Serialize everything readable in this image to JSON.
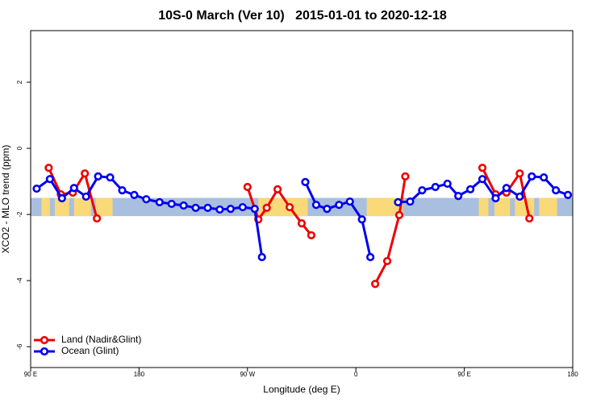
{
  "chart_data": {
    "type": "line",
    "title": "10S-0 March (Ver 10)   2015-01-01 to 2020-12-18",
    "xlabel": "Longitude (deg E)",
    "ylabel": "XCO2 - MLO trend (ppm)",
    "xlim": [
      90,
      540
    ],
    "ylim": [
      -6.63,
      3.56
    ],
    "xticks": [
      {
        "value": 90,
        "label": "90 E"
      },
      180,
      {
        "value": 270,
        "label": "90 W"
      },
      {
        "value": 360,
        "label": "0"
      },
      {
        "value": 450,
        "label": "90 E"
      },
      {
        "value": 540,
        "label": "180"
      }
    ],
    "yticks": [
      2,
      0,
      -2,
      -4,
      -6
    ],
    "legend": "bottomleft",
    "map_strip": {
      "ylim": [
        -2.05,
        -1.5
      ],
      "color": "#a9bfdf",
      "land_color": "#f9d978",
      "land": [
        [
          99,
          106
        ],
        [
          110,
          122
        ],
        [
          126,
          140
        ],
        [
          144,
          158
        ],
        [
          279,
          320
        ],
        [
          369,
          399
        ],
        [
          462,
          470
        ],
        [
          475,
          488
        ],
        [
          492,
          508
        ],
        [
          512,
          527
        ]
      ]
    },
    "series": [
      {
        "name": "Land (Nadir&Glint)",
        "color": "#ee0000",
        "x": [
          105,
          115,
          125,
          135,
          145,
          null,
          270,
          279,
          286,
          295,
          305,
          315,
          323,
          null,
          376,
          386,
          396,
          401,
          null,
          465,
          476,
          485,
          496,
          504
        ],
        "values": [
          -0.59,
          -1.39,
          -1.34,
          -0.76,
          -2.12,
          null,
          -1.17,
          -2.15,
          -1.8,
          -1.24,
          -1.78,
          -2.27,
          -2.63,
          null,
          -4.1,
          -3.41,
          -2.02,
          -0.85,
          null,
          -0.59,
          -1.39,
          -1.34,
          -0.76,
          -2.12
        ]
      },
      {
        "name": "Ocean (Glint)",
        "color": "#0000ee",
        "x": [
          95,
          106,
          116,
          126,
          136,
          146,
          156,
          166,
          176,
          186,
          197,
          207,
          217,
          227,
          237,
          247,
          256,
          266,
          276,
          282,
          null,
          318,
          327,
          336,
          346,
          355,
          365,
          372,
          null,
          395,
          405,
          415,
          426,
          436,
          445,
          455,
          465,
          476,
          485,
          496,
          506,
          516,
          526,
          536
        ],
        "values": [
          -1.22,
          -0.93,
          -1.51,
          -1.2,
          -1.46,
          -0.85,
          -0.88,
          -1.27,
          -1.41,
          -1.54,
          -1.63,
          -1.68,
          -1.73,
          -1.8,
          -1.8,
          -1.85,
          -1.83,
          -1.78,
          -1.83,
          -3.29,
          null,
          -1.02,
          -1.71,
          -1.83,
          -1.71,
          -1.61,
          -2.15,
          -3.29,
          null,
          -1.63,
          -1.61,
          -1.27,
          -1.17,
          -1.07,
          -1.44,
          -1.24,
          -0.93,
          -1.51,
          -1.2,
          -1.46,
          -0.85,
          -0.88,
          -1.27,
          -1.41
        ]
      }
    ]
  }
}
